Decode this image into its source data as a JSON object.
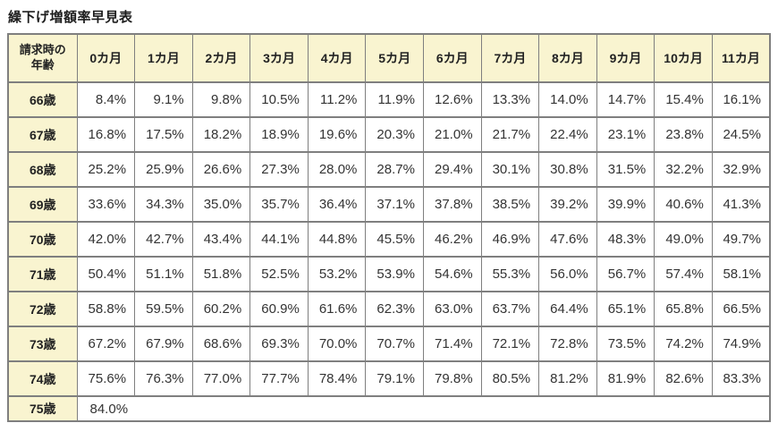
{
  "page": {
    "title": "繰下げ増額率早見表"
  },
  "chart_data": {
    "type": "table",
    "title": "繰下げ増額率早見表",
    "corner_header": "請求時の年齢",
    "corner_header_lines": [
      "請求時の",
      "年齢"
    ],
    "month_headers": [
      "0カ月",
      "1カ月",
      "2カ月",
      "3カ月",
      "4カ月",
      "5カ月",
      "6カ月",
      "7カ月",
      "8カ月",
      "9カ月",
      "10カ月",
      "11カ月"
    ],
    "rows": [
      {
        "age": "66歳",
        "values": [
          "8.4%",
          "9.1%",
          "9.8%",
          "10.5%",
          "11.2%",
          "11.9%",
          "12.6%",
          "13.3%",
          "14.0%",
          "14.7%",
          "15.4%",
          "16.1%"
        ]
      },
      {
        "age": "67歳",
        "values": [
          "16.8%",
          "17.5%",
          "18.2%",
          "18.9%",
          "19.6%",
          "20.3%",
          "21.0%",
          "21.7%",
          "22.4%",
          "23.1%",
          "23.8%",
          "24.5%"
        ]
      },
      {
        "age": "68歳",
        "values": [
          "25.2%",
          "25.9%",
          "26.6%",
          "27.3%",
          "28.0%",
          "28.7%",
          "29.4%",
          "30.1%",
          "30.8%",
          "31.5%",
          "32.2%",
          "32.9%"
        ]
      },
      {
        "age": "69歳",
        "values": [
          "33.6%",
          "34.3%",
          "35.0%",
          "35.7%",
          "36.4%",
          "37.1%",
          "37.8%",
          "38.5%",
          "39.2%",
          "39.9%",
          "40.6%",
          "41.3%"
        ]
      },
      {
        "age": "70歳",
        "values": [
          "42.0%",
          "42.7%",
          "43.4%",
          "44.1%",
          "44.8%",
          "45.5%",
          "46.2%",
          "46.9%",
          "47.6%",
          "48.3%",
          "49.0%",
          "49.7%"
        ]
      },
      {
        "age": "71歳",
        "values": [
          "50.4%",
          "51.1%",
          "51.8%",
          "52.5%",
          "53.2%",
          "53.9%",
          "54.6%",
          "55.3%",
          "56.0%",
          "56.7%",
          "57.4%",
          "58.1%"
        ]
      },
      {
        "age": "72歳",
        "values": [
          "58.8%",
          "59.5%",
          "60.2%",
          "60.9%",
          "61.6%",
          "62.3%",
          "63.0%",
          "63.7%",
          "64.4%",
          "65.1%",
          "65.8%",
          "66.5%"
        ]
      },
      {
        "age": "73歳",
        "values": [
          "67.2%",
          "67.9%",
          "68.6%",
          "69.3%",
          "70.0%",
          "70.7%",
          "71.4%",
          "72.1%",
          "72.8%",
          "73.5%",
          "74.2%",
          "74.9%"
        ]
      },
      {
        "age": "74歳",
        "values": [
          "75.6%",
          "76.3%",
          "77.0%",
          "77.7%",
          "78.4%",
          "79.1%",
          "79.8%",
          "80.5%",
          "81.2%",
          "81.9%",
          "82.6%",
          "83.3%"
        ]
      },
      {
        "age": "75歳",
        "values": [
          "84.0%"
        ],
        "spans_all_months": true
      }
    ],
    "colors": {
      "header_bg": "#f9f4d0",
      "border": "#7f7f7f",
      "text": "#333333"
    }
  }
}
